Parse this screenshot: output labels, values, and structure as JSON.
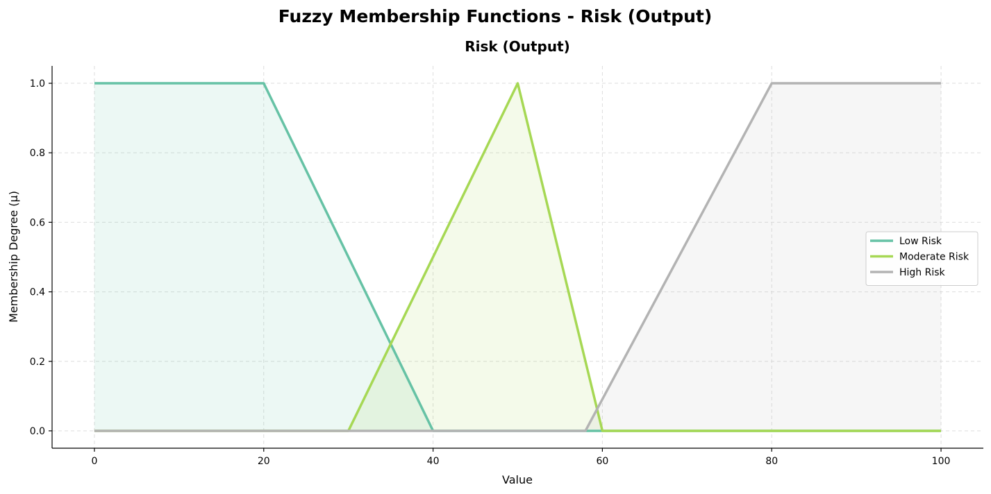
{
  "figure_title": "Fuzzy Membership Functions - Risk (Output)",
  "chart_data": {
    "type": "line",
    "title": "Risk (Output)",
    "xlabel": "Value",
    "ylabel": "Membership Degree (μ)",
    "xlim": [
      -5,
      105
    ],
    "ylim": [
      -0.05,
      1.05
    ],
    "xticks": [
      0,
      20,
      40,
      60,
      80,
      100
    ],
    "yticks": [
      0.0,
      0.2,
      0.4,
      0.6,
      0.8,
      1.0
    ],
    "xtick_labels": [
      "0",
      "20",
      "40",
      "60",
      "80",
      "100"
    ],
    "ytick_labels": [
      "0.0",
      "0.2",
      "0.4",
      "0.6",
      "0.8",
      "1.0"
    ],
    "grid": true,
    "legend_position": "center-right",
    "series": [
      {
        "name": "Low Risk",
        "color": "#66c2a5",
        "x": [
          0,
          20,
          40,
          100
        ],
        "y": [
          1,
          1,
          0,
          0
        ]
      },
      {
        "name": "Moderate Risk",
        "color": "#a6d854",
        "x": [
          0,
          30,
          50,
          60,
          100
        ],
        "y": [
          0,
          0,
          1,
          0,
          0
        ]
      },
      {
        "name": "High Risk",
        "color": "#b3b3b3",
        "x": [
          0,
          58,
          80,
          100
        ],
        "y": [
          0,
          0,
          1,
          1
        ]
      }
    ]
  }
}
